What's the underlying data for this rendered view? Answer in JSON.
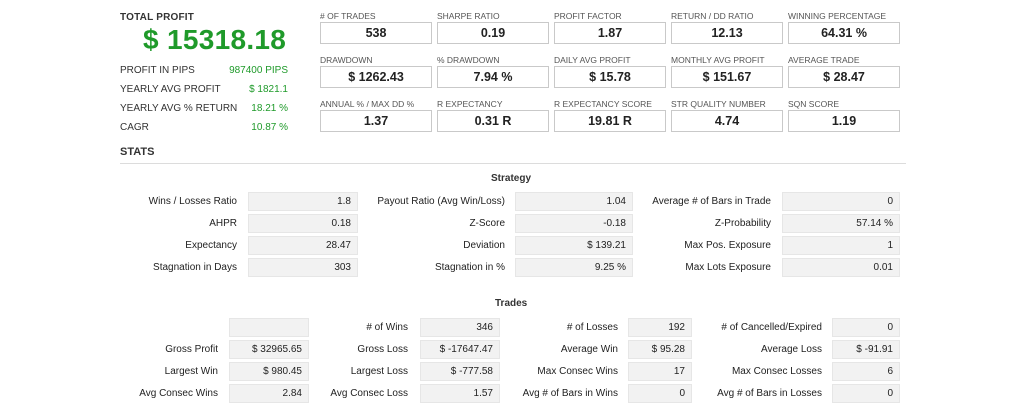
{
  "summary": {
    "total_profit_label": "TOTAL PROFIT",
    "total_profit_value": "$ 15318.18",
    "rows": [
      {
        "label": "PROFIT IN PIPS",
        "value": "987400 PIPS"
      },
      {
        "label": "YEARLY AVG PROFIT",
        "value": "$ 1821.1"
      },
      {
        "label": "YEARLY AVG % RETURN",
        "value": "18.21 %"
      },
      {
        "label": "CAGR",
        "value": "10.87 %"
      }
    ]
  },
  "metrics": [
    [
      {
        "label": "# OF TRADES",
        "value": "538"
      },
      {
        "label": "SHARPE RATIO",
        "value": "0.19"
      },
      {
        "label": "PROFIT FACTOR",
        "value": "1.87"
      },
      {
        "label": "RETURN / DD RATIO",
        "value": "12.13"
      },
      {
        "label": "WINNING PERCENTAGE",
        "value": "64.31 %"
      }
    ],
    [
      {
        "label": "DRAWDOWN",
        "value": "$ 1262.43"
      },
      {
        "label": "% DRAWDOWN",
        "value": "7.94 %"
      },
      {
        "label": "DAILY AVG PROFIT",
        "value": "$ 15.78"
      },
      {
        "label": "MONTHLY AVG PROFIT",
        "value": "$ 151.67"
      },
      {
        "label": "AVERAGE TRADE",
        "value": "$ 28.47"
      }
    ],
    [
      {
        "label": "ANNUAL % / MAX DD %",
        "value": "1.37"
      },
      {
        "label": "R EXPECTANCY",
        "value": "0.31 R"
      },
      {
        "label": "R EXPECTANCY SCORE",
        "value": "19.81 R"
      },
      {
        "label": "STR QUALITY NUMBER",
        "value": "4.74"
      },
      {
        "label": "SQN SCORE",
        "value": "1.19"
      }
    ]
  ],
  "stats_title": "STATS",
  "strategy": {
    "title": "Strategy",
    "rows": [
      [
        [
          "Wins / Losses Ratio",
          "1.8"
        ],
        [
          "Payout Ratio (Avg Win/Loss)",
          "1.04"
        ],
        [
          "Average # of Bars in Trade",
          "0"
        ]
      ],
      [
        [
          "AHPR",
          "0.18"
        ],
        [
          "Z-Score",
          "-0.18"
        ],
        [
          "Z-Probability",
          "57.14 %"
        ]
      ],
      [
        [
          "Expectancy",
          "28.47"
        ],
        [
          "Deviation",
          "$ 139.21"
        ],
        [
          "Max Pos. Exposure",
          "1"
        ]
      ],
      [
        [
          "Stagnation in Days",
          "303"
        ],
        [
          "Stagnation in %",
          "9.25 %"
        ],
        [
          "Max Lots Exposure",
          "0.01"
        ]
      ]
    ]
  },
  "trades": {
    "title": "Trades",
    "rows": [
      [
        [
          "",
          ""
        ],
        [
          "# of Wins",
          "346"
        ],
        [
          "# of Losses",
          "192"
        ],
        [
          "# of Cancelled/Expired",
          "0"
        ]
      ],
      [
        [
          "Gross Profit",
          "$ 32965.65"
        ],
        [
          "Gross Loss",
          "$ -17647.47"
        ],
        [
          "Average Win",
          "$ 95.28"
        ],
        [
          "Average Loss",
          "$ -91.91"
        ]
      ],
      [
        [
          "Largest Win",
          "$ 980.45"
        ],
        [
          "Largest Loss",
          "$ -777.58"
        ],
        [
          "Max Consec Wins",
          "17"
        ],
        [
          "Max Consec Losses",
          "6"
        ]
      ],
      [
        [
          "Avg Consec Wins",
          "2.84"
        ],
        [
          "Avg Consec Loss",
          "1.57"
        ],
        [
          "Avg # of Bars in Wins",
          "0"
        ],
        [
          "Avg # of Bars in Losses",
          "0"
        ]
      ]
    ]
  }
}
